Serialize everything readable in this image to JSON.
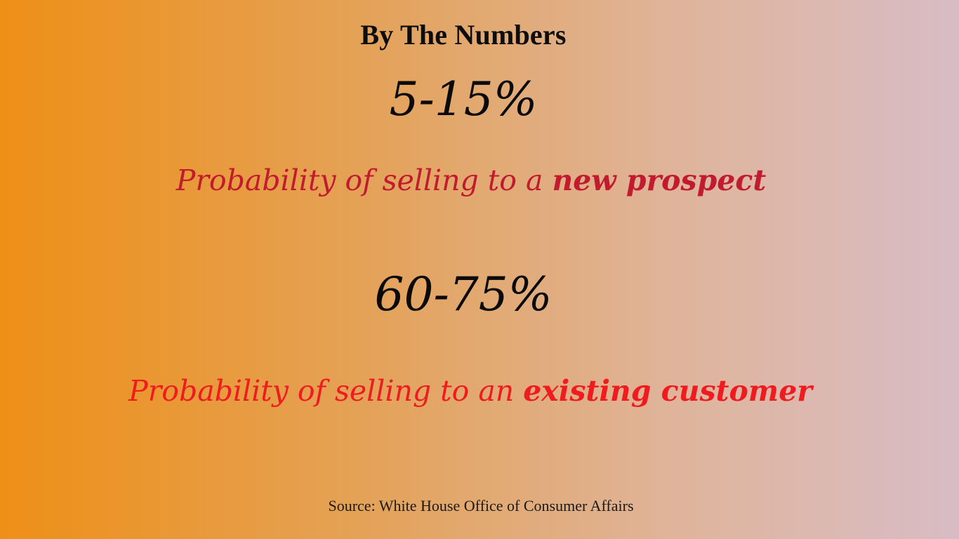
{
  "title": "By The Numbers",
  "stats": [
    {
      "value": "5-15%",
      "caption_prefix": "Probability of selling to a ",
      "caption_emphasis": "new prospect"
    },
    {
      "value": "60-75%",
      "caption_prefix": "Probability of selling to an ",
      "caption_emphasis": "existing customer"
    }
  ],
  "source": "Source: White House Office of Consumer Affairs",
  "colors": {
    "background_left": "#ee8f17",
    "background_right": "#d8bcc5",
    "caption_1": "#c21a2e",
    "caption_2": "#ef1b1f",
    "text_dark": "#0a0a0a"
  }
}
